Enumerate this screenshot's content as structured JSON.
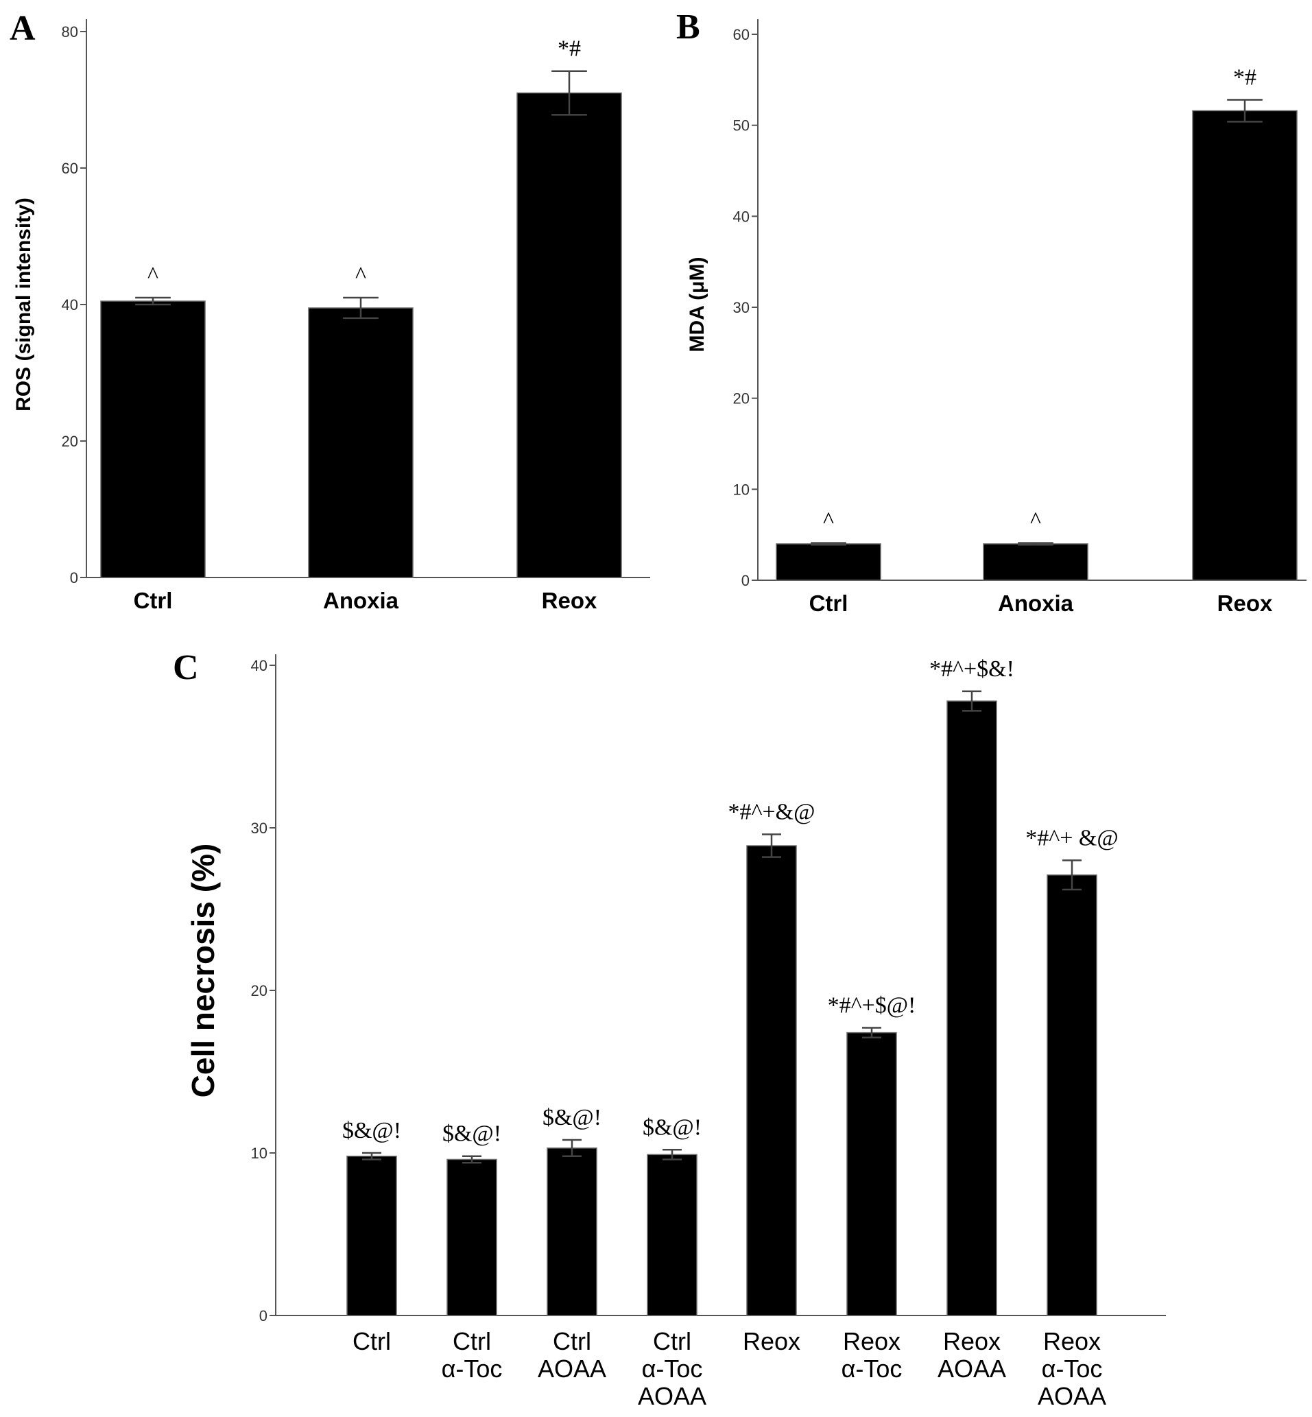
{
  "chart_data": [
    {
      "panel": "A",
      "type": "bar",
      "categories": [
        "Ctrl",
        "Anoxia",
        "Reox"
      ],
      "values": [
        40.5,
        39.5,
        71
      ],
      "errors": [
        0.5,
        1.5,
        3.2
      ],
      "annotations": [
        "^",
        "^",
        "*#"
      ],
      "ylabel": "ROS (signal intensity)",
      "xlabel": "",
      "title": "",
      "ylim": [
        0,
        80
      ],
      "yticks": [
        "0",
        "20",
        "40",
        "60",
        "80"
      ],
      "grid": false,
      "color": "#000000"
    },
    {
      "panel": "B",
      "type": "bar",
      "categories": [
        "Ctrl",
        "Anoxia",
        "Reox"
      ],
      "values": [
        4,
        4,
        51.6
      ],
      "errors": [
        0.1,
        0.1,
        1.2
      ],
      "annotations": [
        "^",
        "^",
        "*#"
      ],
      "ylabel": "MDA (μM)",
      "xlabel": "",
      "title": "",
      "ylim": [
        0,
        60
      ],
      "yticks": [
        "0",
        "10",
        "20",
        "30",
        "40",
        "50",
        "60"
      ],
      "grid": false,
      "color": "#000000"
    },
    {
      "panel": "C",
      "type": "bar",
      "categories": [
        [
          "Ctrl"
        ],
        [
          "Ctrl",
          "α-Toc"
        ],
        [
          "Ctrl",
          "AOAA"
        ],
        [
          "Ctrl",
          "α-Toc",
          "AOAA"
        ],
        [
          "Reox"
        ],
        [
          "Reox",
          "α-Toc"
        ],
        [
          "Reox",
          "AOAA"
        ],
        [
          "Reox",
          "α-Toc",
          "AOAA"
        ]
      ],
      "values": [
        9.8,
        9.6,
        10.3,
        9.9,
        28.9,
        17.4,
        37.8,
        27.1
      ],
      "errors": [
        0.2,
        0.2,
        0.5,
        0.3,
        0.7,
        0.3,
        0.6,
        0.9
      ],
      "annotations": [
        "$&@!",
        "$&@!",
        "$&@!",
        "$&@!",
        "*#^+&@",
        "*#^+$@!",
        "*#^+$&!",
        "*#^+ &@"
      ],
      "ylabel": "Cell necrosis (%)",
      "xlabel": "",
      "title": "",
      "ylim": [
        0,
        40
      ],
      "yticks": [
        "0",
        "10",
        "20",
        "30",
        "40"
      ],
      "grid": false,
      "color": "#000000"
    }
  ]
}
